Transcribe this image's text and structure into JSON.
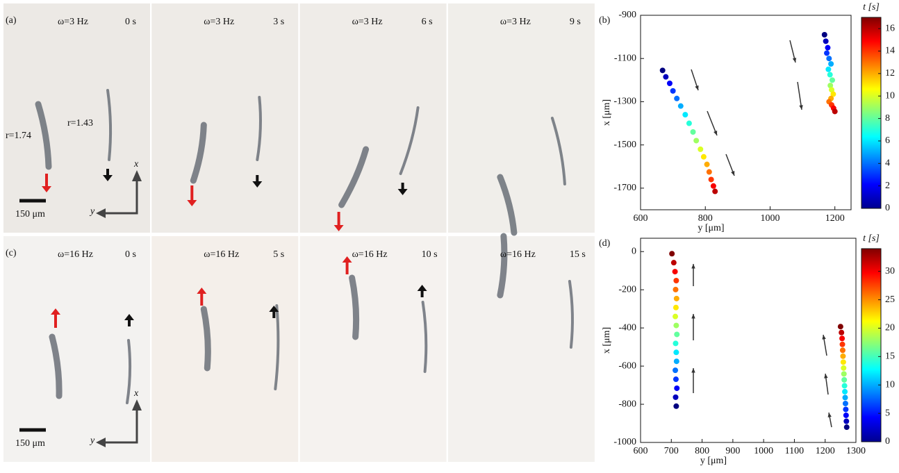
{
  "photo_panels": [
    {
      "label": "(a)",
      "frames": [
        {
          "frequency": "ω=3 Hz",
          "time": "0 s"
        },
        {
          "frequency": "ω=3 Hz",
          "time": "3 s"
        },
        {
          "frequency": "ω=3 Hz",
          "time": "6 s"
        },
        {
          "frequency": "ω=3 Hz",
          "time": "9 s"
        }
      ],
      "annotations": [
        "r=1.74",
        "r=1.43"
      ],
      "scale_bar": "150 μm",
      "axis_x": "x",
      "axis_y": "y"
    },
    {
      "label": "(c)",
      "frames": [
        {
          "frequency": "ω=16 Hz",
          "time": "0 s"
        },
        {
          "frequency": "ω=16 Hz",
          "time": "5 s"
        },
        {
          "frequency": "ω=16 Hz",
          "time": "10 s"
        },
        {
          "frequency": "ω=16 Hz",
          "time": "15 s"
        }
      ],
      "scale_bar": "150 μm",
      "axis_x": "x",
      "axis_y": "y"
    }
  ],
  "chart_data": [
    {
      "type": "scatter",
      "label": "(b)",
      "x_label": "y [μm]",
      "y_label": "x [μm]",
      "xlim": [
        600,
        1250
      ],
      "xticks": [
        600,
        800,
        1000,
        1200
      ],
      "ylim": [
        -1800,
        -900
      ],
      "yticks": [
        -900,
        -1100,
        -1300,
        -1500,
        -1700
      ],
      "colorbar": {
        "label": "t [s]",
        "colormap": "jet",
        "lim": [
          0,
          17
        ],
        "ticks": [
          0,
          2,
          4,
          6,
          8,
          10,
          12,
          14,
          16
        ]
      },
      "series": [
        {
          "x": [
            668,
            678,
            690,
            700,
            712,
            724,
            738,
            750,
            762,
            772,
            785,
            795,
            805,
            812,
            818,
            825,
            830
          ],
          "y": [
            -1155,
            -1185,
            -1215,
            -1250,
            -1285,
            -1320,
            -1360,
            -1400,
            -1440,
            -1480,
            -1520,
            -1555,
            -1590,
            -1625,
            -1660,
            -1690,
            -1715
          ],
          "t": [
            0,
            1,
            2,
            3,
            4,
            5,
            6,
            7,
            8,
            9,
            10,
            11,
            12,
            13,
            14,
            15,
            16
          ]
        },
        {
          "x": [
            1168,
            1172,
            1178,
            1175,
            1182,
            1188,
            1180,
            1185,
            1192,
            1186,
            1190,
            1195,
            1188,
            1182,
            1190,
            1196,
            1200
          ],
          "y": [
            -990,
            -1020,
            -1050,
            -1075,
            -1100,
            -1125,
            -1150,
            -1175,
            -1200,
            -1225,
            -1245,
            -1265,
            -1285,
            -1300,
            -1315,
            -1330,
            -1345
          ],
          "t": [
            0,
            1,
            2,
            3,
            4,
            5,
            6,
            7,
            8,
            9,
            10,
            11,
            12,
            13,
            14,
            15,
            16
          ]
        }
      ]
    },
    {
      "type": "scatter",
      "label": "(d)",
      "x_label": "y [μm]",
      "y_label": "x [μm]",
      "xlim": [
        600,
        1300
      ],
      "xticks": [
        600,
        700,
        800,
        900,
        1000,
        1100,
        1200,
        1300
      ],
      "ylim": [
        -1000,
        70
      ],
      "yticks": [
        0,
        -200,
        -400,
        -600,
        -800,
        -1000
      ],
      "colorbar": {
        "label": "t [s]",
        "colormap": "jet",
        "lim": [
          0,
          34
        ],
        "ticks": [
          0,
          5,
          10,
          15,
          20,
          25,
          30
        ]
      },
      "series": [
        {
          "x": [
            716,
            714,
            718,
            715,
            713,
            717,
            716,
            714,
            718,
            716,
            713,
            715,
            717,
            714,
            716,
            712,
            708,
            702
          ],
          "y": [
            -810,
            -763,
            -716,
            -669,
            -622,
            -575,
            -528,
            -481,
            -434,
            -387,
            -340,
            -293,
            -246,
            -199,
            -152,
            -105,
            -58,
            -11
          ],
          "t": [
            0,
            2,
            4,
            6,
            8,
            10,
            12,
            14,
            16,
            18,
            20,
            22,
            24,
            26,
            28,
            30,
            32,
            34
          ]
        },
        {
          "x": [
            1270,
            1269,
            1268,
            1267,
            1266,
            1265,
            1264,
            1263,
            1262,
            1261,
            1260,
            1259,
            1258,
            1257,
            1256,
            1255,
            1253,
            1250
          ],
          "y": [
            -920,
            -889,
            -858,
            -827,
            -796,
            -765,
            -734,
            -703,
            -672,
            -641,
            -610,
            -579,
            -548,
            -517,
            -486,
            -455,
            -424,
            -393
          ],
          "t": [
            0,
            2,
            4,
            6,
            8,
            10,
            12,
            14,
            16,
            18,
            20,
            22,
            24,
            26,
            28,
            30,
            32,
            34
          ]
        }
      ]
    }
  ]
}
